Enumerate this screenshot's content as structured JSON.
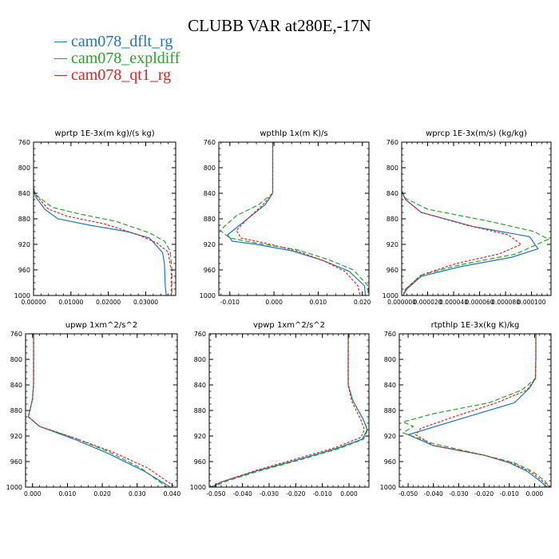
{
  "title": "CLUBB VAR at280E,-17N",
  "legend": [
    {
      "label": "cam078_dflt_rg",
      "color": "#1f77b4"
    },
    {
      "label": "cam078_expldiff",
      "color": "#2ca02c"
    },
    {
      "label": "cam078_qt1_rg",
      "color": "#d62728"
    }
  ],
  "chart_data": [
    {
      "type": "line",
      "title": "wprtp  1E-3x(m kg)/(s kg)",
      "xlim": [
        0,
        0.038
      ],
      "ylim": [
        760,
        1000
      ],
      "xticks": [
        0,
        0.01,
        0.02,
        0.03
      ],
      "xtick_labels": [
        "0.00000",
        "0.01000",
        "0.02000",
        "0.03000"
      ],
      "yticks": [
        760,
        800,
        840,
        880,
        920,
        960,
        1000
      ],
      "series": [
        {
          "name": "cam078_dflt_rg",
          "color": "#1f77b4",
          "dash": "",
          "x": [
            0,
            0.0005,
            0.003,
            0.0065,
            0.015,
            0.025,
            0.031,
            0.0345,
            0.035,
            0.0352,
            0.0355
          ],
          "y": [
            832,
            845,
            865,
            880,
            890,
            900,
            910,
            933,
            950,
            985,
            1000
          ]
        },
        {
          "name": "cam078_expldiff",
          "color": "#2ca02c",
          "dash": "6,3",
          "x": [
            0,
            0.0005,
            0.005,
            0.012,
            0.022,
            0.031,
            0.035,
            0.0365,
            0.037,
            0.037
          ],
          "y": [
            832,
            842,
            862,
            872,
            884,
            902,
            915,
            930,
            960,
            1000
          ]
        },
        {
          "name": "cam078_qt1_rg",
          "color": "#d62728",
          "dash": "3,2",
          "x": [
            0,
            0.0005,
            0.004,
            0.009,
            0.019,
            0.028,
            0.033,
            0.036,
            0.0368,
            0.0368
          ],
          "y": [
            832,
            842,
            865,
            876,
            888,
            905,
            918,
            932,
            962,
            1000
          ]
        }
      ]
    },
    {
      "type": "line",
      "title": "wpthlp  1x(m K)/s",
      "xlim": [
        -0.0125,
        0.0215
      ],
      "ylim": [
        760,
        1000
      ],
      "xticks": [
        -0.01,
        0,
        0.01,
        0.02
      ],
      "xtick_labels": [
        "-0.010",
        "0.000",
        "0.010",
        "0.020"
      ],
      "yticks": [
        760,
        800,
        840,
        880,
        920,
        960,
        1000
      ],
      "series": [
        {
          "name": "cam078_dflt_rg",
          "color": "#1f77b4",
          "dash": "",
          "x": [
            -0.0003,
            -0.0003,
            -0.0003,
            -0.002,
            -0.006,
            -0.0105,
            -0.0095,
            -0.004,
            0.004,
            0.011,
            0.017,
            0.0205,
            0.0207
          ],
          "y": [
            760,
            800,
            840,
            858,
            880,
            905,
            915,
            920,
            930,
            945,
            962,
            985,
            1000
          ]
        },
        {
          "name": "cam078_expldiff",
          "color": "#2ca02c",
          "dash": "6,3",
          "x": [
            -0.0003,
            -0.0003,
            -0.0003,
            -0.0035,
            -0.0085,
            -0.0122,
            -0.01,
            -0.004,
            0.005,
            0.012,
            0.018,
            0.0213,
            0.0213
          ],
          "y": [
            760,
            800,
            840,
            858,
            875,
            898,
            910,
            918,
            928,
            943,
            960,
            985,
            1000
          ]
        },
        {
          "name": "cam078_qt1_rg",
          "color": "#d62728",
          "dash": "3,2",
          "x": [
            -0.0003,
            -0.0003,
            -0.0003,
            -0.0025,
            -0.006,
            -0.0085,
            -0.0075,
            -0.002,
            0.005,
            0.011,
            0.016,
            0.019,
            0.0195
          ],
          "y": [
            760,
            800,
            840,
            858,
            880,
            898,
            910,
            918,
            930,
            945,
            962,
            985,
            1000
          ]
        }
      ]
    },
    {
      "type": "line",
      "title": "wprcp  1E-3x(m/s) (kg/kg)",
      "xlim": [
        0,
        0.000115
      ],
      "ylim": [
        760,
        1000
      ],
      "xticks": [
        0,
        2e-05,
        4e-05,
        6e-05,
        8e-05,
        0.0001
      ],
      "xtick_labels": [
        "0.000000",
        "0.000020",
        "0.000040",
        "0.000060",
        "0.000080",
        "0.000100"
      ],
      "yticks": [
        760,
        800,
        840,
        880,
        920,
        960,
        1000
      ],
      "series": [
        {
          "name": "cam078_dflt_rg",
          "color": "#1f77b4",
          "dash": "",
          "x": [
            0,
            3e-06,
            1.5e-05,
            5.5e-05,
            9.85e-05,
            0.000105,
            8.5e-05,
            4.5e-05,
            1.5e-05,
            4e-06,
            1e-06
          ],
          "y": [
            838,
            850,
            870,
            892,
            908,
            927,
            940,
            955,
            970,
            990,
            1000
          ]
        },
        {
          "name": "cam078_expldiff",
          "color": "#2ca02c",
          "dash": "6,3",
          "x": [
            0,
            3e-06,
            2e-05,
            7e-05,
            0.000102,
            0.000113,
            8.8e-05,
            4.5e-05,
            1.5e-05,
            3e-06,
            1e-06
          ],
          "y": [
            836,
            848,
            865,
            885,
            900,
            912,
            935,
            952,
            968,
            990,
            1000
          ]
        },
        {
          "name": "cam078_qt1_rg",
          "color": "#d62728",
          "dash": "3,2",
          "x": [
            0,
            3e-06,
            1.5e-05,
            5e-05,
            8.2e-05,
            9.2e-05,
            7.5e-05,
            4.2e-05,
            1.5e-05,
            3e-06,
            1e-06
          ],
          "y": [
            838,
            850,
            870,
            890,
            905,
            920,
            935,
            950,
            968,
            990,
            1000
          ]
        }
      ]
    },
    {
      "type": "line",
      "title": "upwp  1xm^2/s^2",
      "xlim": [
        -0.002,
        0.0415
      ],
      "ylim": [
        760,
        1000
      ],
      "xticks": [
        0,
        0.01,
        0.02,
        0.03,
        0.04
      ],
      "xtick_labels": [
        "0.000",
        "0.010",
        "0.020",
        "0.030",
        "0.040"
      ],
      "yticks": [
        760,
        800,
        840,
        880,
        920,
        960,
        1000
      ],
      "series": [
        {
          "name": "cam078_dflt_rg",
          "color": "#1f77b4",
          "dash": "",
          "x": [
            0.0003,
            0.0003,
            0.0003,
            0.0,
            -0.0012,
            0.002,
            0.012,
            0.022,
            0.032,
            0.0395
          ],
          "y": [
            760,
            800,
            840,
            862,
            890,
            905,
            925,
            948,
            975,
            1000
          ]
        },
        {
          "name": "cam078_expldiff",
          "color": "#2ca02c",
          "dash": "6,3",
          "x": [
            0.0003,
            0.0003,
            0.0003,
            0.0,
            -0.0012,
            0.002,
            0.012,
            0.022,
            0.031,
            0.0385
          ],
          "y": [
            760,
            800,
            840,
            862,
            890,
            905,
            923,
            945,
            970,
            1000
          ]
        },
        {
          "name": "cam078_qt1_rg",
          "color": "#d62728",
          "dash": "3,2",
          "x": [
            0.0003,
            0.0003,
            0.0003,
            0.0,
            -0.0012,
            0.002,
            0.012,
            0.023,
            0.033,
            0.041
          ],
          "y": [
            760,
            800,
            840,
            862,
            890,
            905,
            923,
            945,
            970,
            1000
          ]
        }
      ]
    },
    {
      "type": "line",
      "title": "vpwp  1xm^2/s^2",
      "xlim": [
        -0.0525,
        0.0075
      ],
      "ylim": [
        760,
        1000
      ],
      "xticks": [
        -0.05,
        -0.04,
        -0.03,
        -0.02,
        -0.01,
        0
      ],
      "xtick_labels": [
        "-0.050",
        "-0.040",
        "-0.030",
        "-0.020",
        "-0.010",
        "0.000"
      ],
      "yticks": [
        760,
        800,
        840,
        880,
        920,
        960,
        1000
      ],
      "series": [
        {
          "name": "cam078_dflt_rg",
          "color": "#1f77b4",
          "dash": "",
          "x": [
            -0.0003,
            -0.0003,
            -0.0003,
            0.0015,
            0.0055,
            0.0068,
            0.005,
            -0.005,
            -0.02,
            -0.035,
            -0.048,
            -0.052
          ],
          "y": [
            760,
            800,
            840,
            865,
            895,
            910,
            925,
            940,
            958,
            975,
            992,
            1000
          ]
        },
        {
          "name": "cam078_expldiff",
          "color": "#2ca02c",
          "dash": "6,3",
          "x": [
            -0.0003,
            -0.0003,
            -0.0003,
            0.0015,
            0.0055,
            0.007,
            0.0055,
            -0.004,
            -0.019,
            -0.034,
            -0.047,
            -0.051
          ],
          "y": [
            760,
            800,
            840,
            865,
            895,
            910,
            925,
            940,
            958,
            975,
            992,
            1000
          ]
        },
        {
          "name": "cam078_qt1_rg",
          "color": "#d62728",
          "dash": "3,2",
          "x": [
            -0.0003,
            -0.0003,
            -0.0003,
            0.001,
            0.0045,
            0.0058,
            0.0045,
            -0.005,
            -0.02,
            -0.035,
            -0.048,
            -0.0515
          ],
          "y": [
            760,
            800,
            840,
            865,
            895,
            910,
            922,
            938,
            956,
            974,
            992,
            1000
          ]
        }
      ]
    },
    {
      "type": "line",
      "title": "rtpthlp  1E-3x(kg K)/kg",
      "xlim": [
        -0.0535,
        0.0065
      ],
      "ylim": [
        760,
        1000
      ],
      "xticks": [
        -0.05,
        -0.04,
        -0.03,
        -0.02,
        -0.01,
        0
      ],
      "xtick_labels": [
        "-0.050",
        "-0.040",
        "-0.030",
        "-0.020",
        "-0.010",
        "0.000"
      ],
      "yticks": [
        760,
        800,
        840,
        880,
        920,
        960,
        1000
      ],
      "series": [
        {
          "name": "cam078_dflt_rg",
          "color": "#1f77b4",
          "dash": "",
          "x": [
            0.0005,
            0.0005,
            0.0003,
            -0.002,
            -0.008,
            -0.025,
            -0.05,
            -0.04,
            -0.02,
            -0.01,
            -0.003,
            0.002,
            0.005
          ],
          "y": [
            760,
            800,
            830,
            845,
            868,
            888,
            918,
            935,
            950,
            962,
            975,
            990,
            1000
          ]
        },
        {
          "name": "cam078_expldiff",
          "color": "#2ca02c",
          "dash": "6,3",
          "x": [
            0.0005,
            0.0005,
            0.0003,
            -0.005,
            -0.018,
            -0.04,
            -0.052,
            -0.048,
            -0.052,
            -0.04,
            -0.02,
            -0.008,
            -0.001,
            0.004,
            0.006
          ],
          "y": [
            760,
            800,
            830,
            848,
            868,
            885,
            898,
            905,
            915,
            932,
            950,
            962,
            975,
            990,
            1000
          ]
        },
        {
          "name": "cam078_qt1_rg",
          "color": "#d62728",
          "dash": "3,2",
          "x": [
            0.0005,
            0.0005,
            0.0003,
            -0.003,
            -0.015,
            -0.032,
            -0.045,
            -0.047,
            -0.04,
            -0.02,
            -0.009,
            -0.002,
            0.003,
            0.006
          ],
          "y": [
            760,
            800,
            830,
            848,
            868,
            890,
            908,
            918,
            935,
            950,
            962,
            975,
            990,
            1000
          ]
        }
      ]
    }
  ]
}
